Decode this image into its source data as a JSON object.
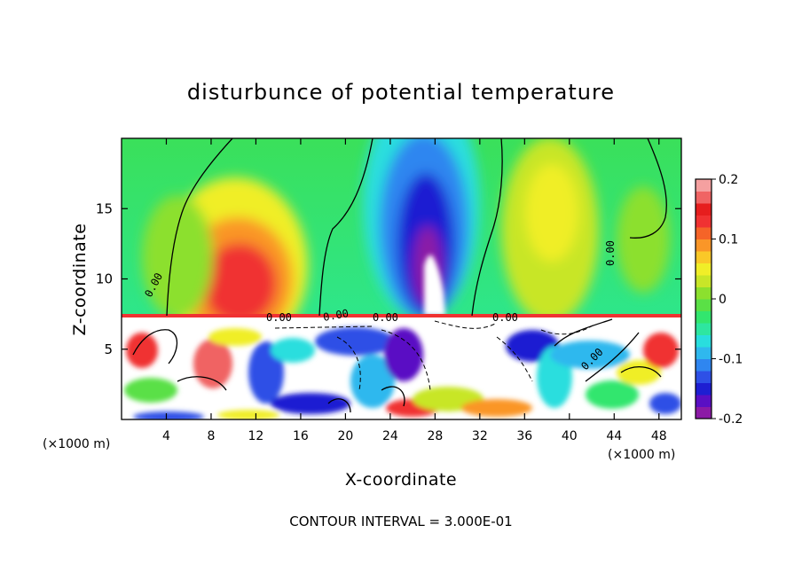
{
  "chart_data": {
    "type": "heatmap",
    "title": "disturbunce of potential temperature",
    "xlabel": "X-coordinate",
    "ylabel": "Z-coordinate",
    "x_unit": "(×1000 m)",
    "y_unit": "(×1000 m)",
    "xlim": [
      0,
      50
    ],
    "ylim": [
      0,
      20
    ],
    "x_ticks": [
      4,
      8,
      12,
      16,
      20,
      24,
      28,
      32,
      36,
      40,
      44,
      48
    ],
    "y_ticks": [
      5,
      10,
      15
    ],
    "colorbar": {
      "vmin": -0.2,
      "vmax": 0.2,
      "ticks": [
        "0.2",
        "0.1",
        "0",
        "-0.1",
        "-0.2"
      ],
      "tick_values": [
        0.2,
        0.1,
        0,
        -0.1,
        -0.2
      ],
      "colors": [
        "#8c1aa6",
        "#5a0fc4",
        "#1e1ed2",
        "#2e50e6",
        "#2f86f0",
        "#2fb8ee",
        "#29dede",
        "#2ee6a0",
        "#32e66e",
        "#5ae046",
        "#8ce02e",
        "#c8e628",
        "#f0ee28",
        "#fac828",
        "#fa9628",
        "#f56428",
        "#f03232",
        "#e61e1e",
        "#f06464",
        "#f5a0a0"
      ]
    },
    "contour_labels": [
      "0.00",
      "0.00",
      "0.00",
      "0.00",
      "0.00",
      "0.00",
      "0.00"
    ],
    "annotation": "CONTOUR INTERVAL = 3.000E-01"
  }
}
